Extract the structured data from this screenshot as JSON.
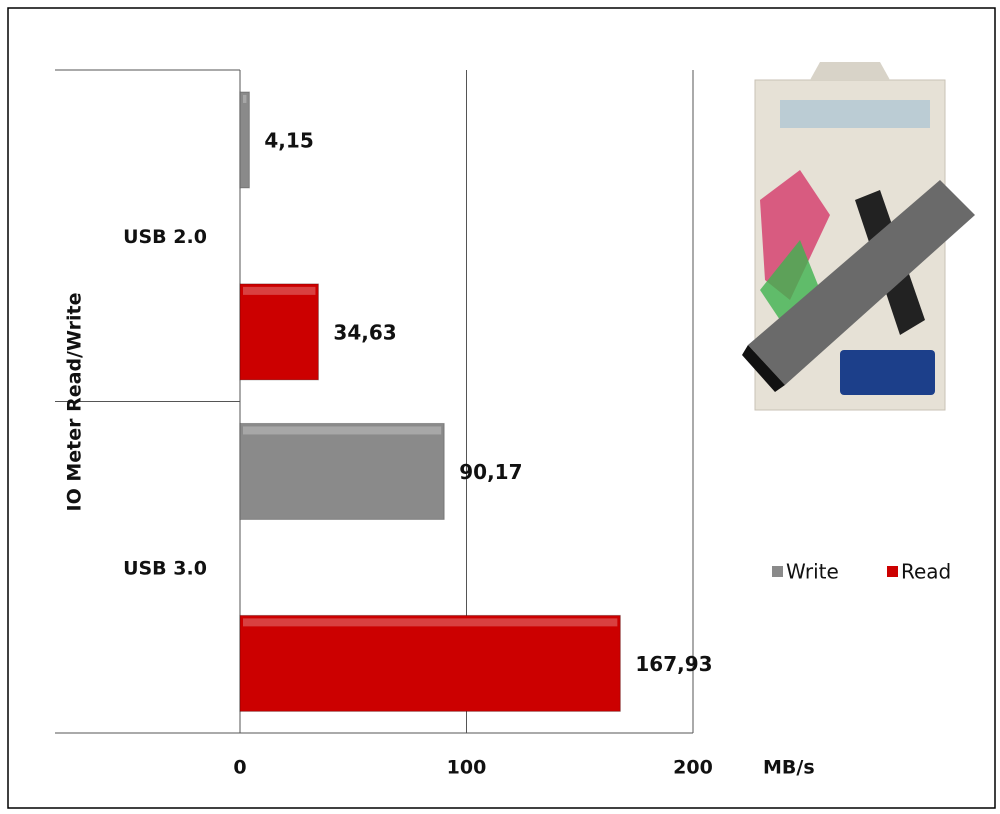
{
  "chart_data": {
    "type": "barh",
    "categories": [
      "USB 2.0",
      "USB 3.0"
    ],
    "series": [
      {
        "name": "Write",
        "color": "#8a8a8a",
        "values": [
          4.15,
          90.17
        ],
        "value_labels": [
          "4,15",
          "90,17"
        ]
      },
      {
        "name": "Read",
        "color": "#cc0000",
        "values": [
          34.63,
          167.93
        ],
        "value_labels": [
          "34,63",
          "167,93"
        ]
      }
    ],
    "xlim": [
      0,
      200
    ],
    "xticks": [
      0,
      100,
      200
    ],
    "xlabel": "MB/s",
    "ylabel": "IO Meter Read/Write",
    "grid": true,
    "legend": "right"
  }
}
